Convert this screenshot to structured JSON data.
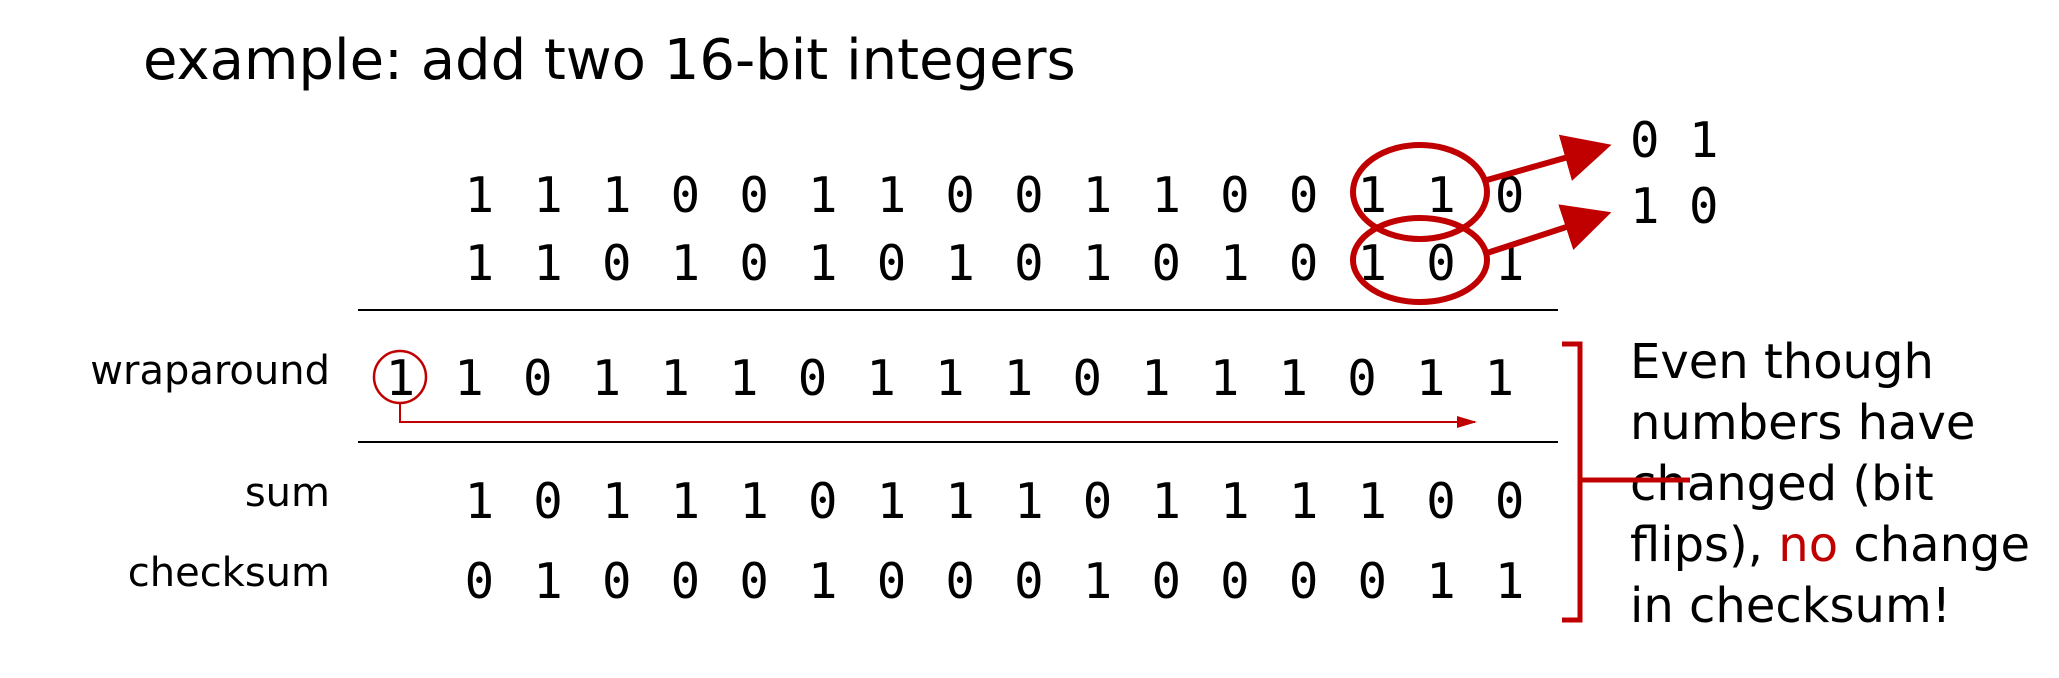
{
  "title": "example: add two 16-bit integers",
  "rows": {
    "a": [
      "1",
      "1",
      "1",
      "0",
      "0",
      "1",
      "1",
      "0",
      "0",
      "1",
      "1",
      "0",
      "0",
      "1",
      "1",
      "0"
    ],
    "b": [
      "1",
      "1",
      "0",
      "1",
      "0",
      "1",
      "0",
      "1",
      "0",
      "1",
      "0",
      "1",
      "0",
      "1",
      "0",
      "1"
    ],
    "wrap": [
      "1",
      "1",
      "0",
      "1",
      "1",
      "1",
      "0",
      "1",
      "1",
      "1",
      "0",
      "1",
      "1",
      "1",
      "0",
      "1",
      "1"
    ],
    "sum": [
      "1",
      "0",
      "1",
      "1",
      "1",
      "0",
      "1",
      "1",
      "1",
      "0",
      "1",
      "1",
      "1",
      "1",
      "0",
      "0"
    ],
    "checksum": [
      "0",
      "1",
      "0",
      "0",
      "0",
      "1",
      "0",
      "0",
      "0",
      "1",
      "0",
      "0",
      "0",
      "0",
      "1",
      "1"
    ]
  },
  "labels": {
    "wraparound": "wraparound",
    "sum": "sum",
    "checksum": "checksum"
  },
  "flipped": {
    "top": "0 1",
    "bottom": "1 0"
  },
  "note": {
    "line1": "Even though",
    "line2": "numbers have",
    "line3": "changed (bit",
    "line4_a": "flips), ",
    "line4_red": "no",
    "line4_b": " change",
    "line5": "in checksum!"
  },
  "colors": {
    "accent": "#c00000",
    "text": "#000000"
  }
}
